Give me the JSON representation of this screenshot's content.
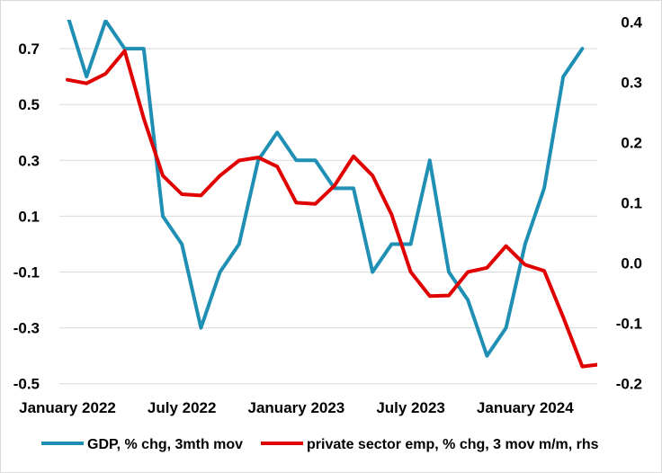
{
  "chart_data": {
    "type": "line",
    "title": "",
    "x_labels": [
      "January 2022",
      "July 2022",
      "January 2023",
      "July 2023",
      "January 2024"
    ],
    "x_months": [
      "2022-01",
      "2022-02",
      "2022-03",
      "2022-04",
      "2022-05",
      "2022-06",
      "2022-07",
      "2022-08",
      "2022-09",
      "2022-10",
      "2022-11",
      "2022-12",
      "2023-01",
      "2023-02",
      "2023-03",
      "2023-04",
      "2023-05",
      "2023-06",
      "2023-07",
      "2023-08",
      "2023-09",
      "2023-10",
      "2023-11",
      "2023-12",
      "2024-01",
      "2024-02",
      "2024-03",
      "2024-04",
      "2024-05",
      "2024-06"
    ],
    "y_left": {
      "ticks": [
        -0.5,
        -0.3,
        -0.1,
        0.1,
        0.3,
        0.5,
        0.7
      ],
      "tick_labels": [
        "-0.5",
        "-0.3",
        "-0.1",
        "0.1",
        "0.3",
        "0.5",
        "0.7"
      ],
      "range": [
        -0.55,
        0.8
      ]
    },
    "y_right": {
      "ticks": [
        -0.2,
        -0.1,
        0.0,
        0.1,
        0.2,
        0.3,
        0.4
      ],
      "tick_labels": [
        "-0.2",
        "-0.1",
        "0.0",
        "0.1",
        "0.2",
        "0.3",
        "0.4"
      ],
      "range": [
        -0.2,
        0.4
      ]
    },
    "grid": "horizontal",
    "legend_position": "bottom",
    "series": [
      {
        "name": "GDP, % chg, 3mth mov",
        "axis": "left",
        "color": "#1f8fb4",
        "values": [
          0.82,
          0.6,
          0.8,
          0.7,
          0.7,
          0.1,
          0.0,
          -0.3,
          -0.1,
          0.0,
          0.3,
          0.4,
          0.3,
          0.3,
          0.2,
          0.2,
          -0.1,
          0.0,
          0.0,
          0.3,
          -0.1,
          -0.2,
          -0.4,
          -0.3,
          0.0,
          0.2,
          0.6,
          0.7,
          null,
          null
        ]
      },
      {
        "name": "private sector emp, % chg, 3 mov m/m, rhs",
        "axis": "right",
        "color": "#e00000",
        "values": [
          0.304,
          0.298,
          0.314,
          0.352,
          0.24,
          0.145,
          0.114,
          0.112,
          0.145,
          0.17,
          0.175,
          0.16,
          0.1,
          0.098,
          0.128,
          0.177,
          0.145,
          0.08,
          -0.015,
          -0.055,
          -0.054,
          -0.015,
          -0.008,
          0.028,
          -0.003,
          -0.013,
          -0.09,
          -0.172,
          -0.168,
          null
        ]
      }
    ]
  }
}
